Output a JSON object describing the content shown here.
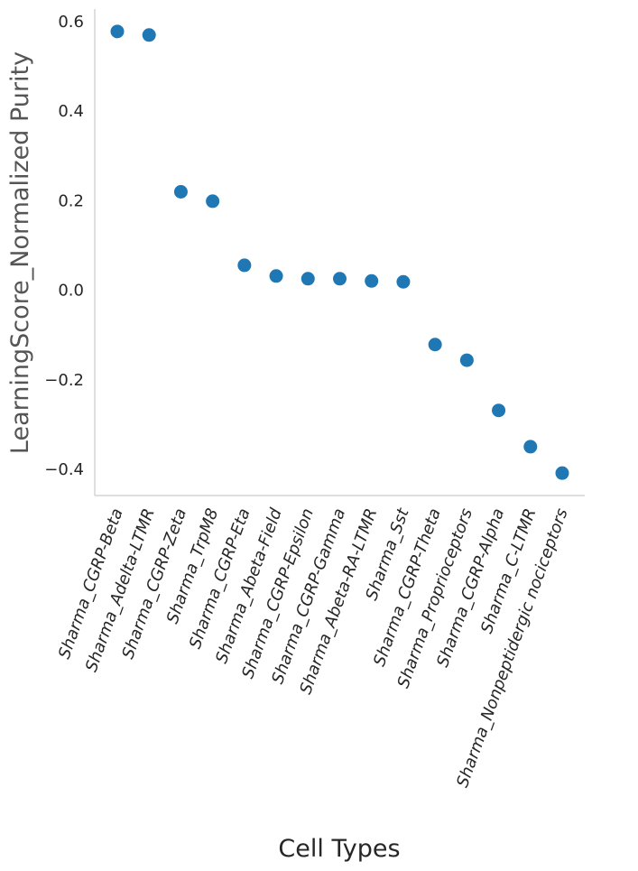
{
  "chart_data": {
    "type": "scatter",
    "title": "",
    "xlabel": "Cell Types",
    "ylabel": "LearningScore_Normalized Purity",
    "categories": [
      "Sharma_CGRP-Beta",
      "Sharma_Adelta-LTMR",
      "Sharma_CGRP-Zeta",
      "Sharma_TrpM8",
      "Sharma_CGRP-Eta",
      "Sharma_Abeta-Field",
      "Sharma_CGRP-Epsilon",
      "Sharma_CGRP-Gamma",
      "Sharma_Abeta-RA-LTMR",
      "Sharma_Sst",
      "Sharma_CGRP-Theta",
      "Sharma_Proprioceptors",
      "Sharma_CGRP-Alpha",
      "Sharma_C-LTMR",
      "Sharma_Nonpeptidergic nociceptors"
    ],
    "values": [
      0.578,
      0.57,
      0.22,
      0.199,
      0.056,
      0.032,
      0.026,
      0.026,
      0.021,
      0.019,
      -0.121,
      -0.156,
      -0.268,
      -0.349,
      -0.408
    ],
    "yticks": [
      -0.4,
      -0.2,
      0.0,
      0.2,
      0.4,
      0.6
    ],
    "ytick_labels": [
      "−0.4",
      "−0.2",
      "0.0",
      "0.2",
      "0.4",
      "0.6"
    ],
    "ylim": [
      -0.458,
      0.628
    ],
    "grid": false,
    "marker_color": "#1f77b4",
    "axis_color": "#cccccc"
  }
}
